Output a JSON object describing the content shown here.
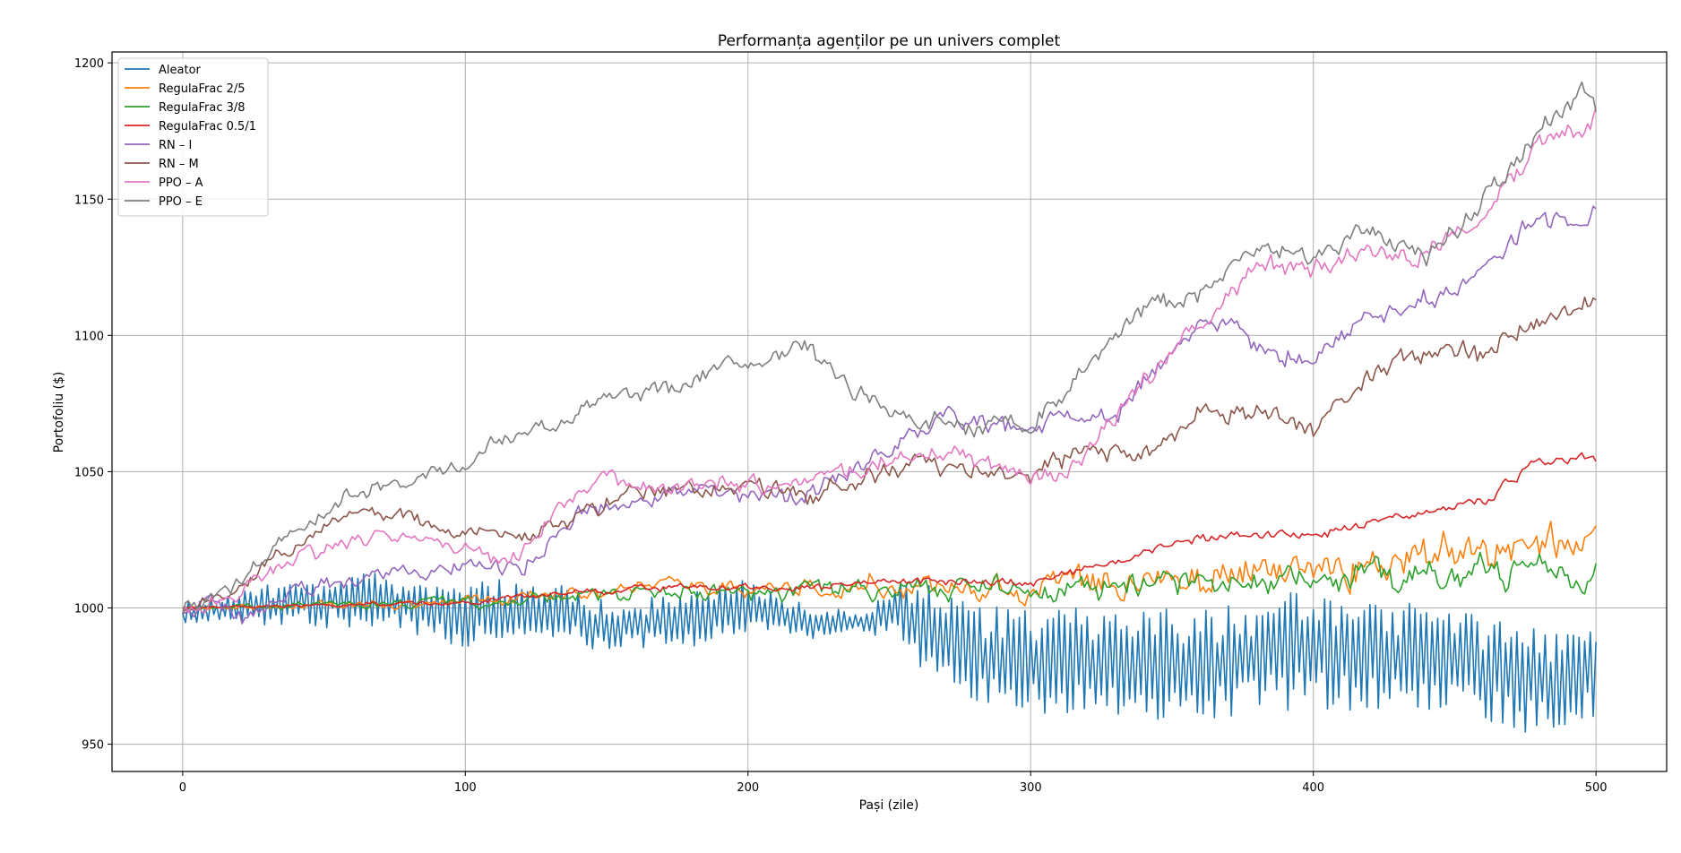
{
  "chart_data": {
    "type": "line",
    "title": "Performanța agenților pe un univers complet",
    "xlabel": "Pași (zile)",
    "ylabel": "Portofoliu ($)",
    "xlim": [
      -25,
      525
    ],
    "ylim": [
      940,
      1204
    ],
    "xticks": [
      0,
      100,
      200,
      300,
      400,
      500
    ],
    "yticks": [
      950,
      1000,
      1050,
      1100,
      1150,
      1200
    ],
    "grid": true,
    "legend_position": "top-left",
    "series": [
      {
        "name": "Aleator",
        "color": "#1f77b4",
        "mode": "oscillating",
        "amplitude_points": [
          [
            0,
            4
          ],
          [
            20,
            6
          ],
          [
            60,
            10
          ],
          [
            100,
            12
          ],
          [
            140,
            10
          ],
          [
            200,
            10
          ],
          [
            240,
            3
          ],
          [
            265,
            18
          ],
          [
            300,
            20
          ],
          [
            400,
            22
          ],
          [
            500,
            18
          ]
        ],
        "x": [
          0,
          20,
          40,
          60,
          80,
          100,
          130,
          150,
          170,
          200,
          220,
          240,
          255,
          265,
          290,
          320,
          350,
          380,
          400,
          430,
          460,
          480,
          495,
          500
        ],
        "y": [
          998,
          1000,
          1002,
          1003,
          1001,
          998,
          1000,
          993,
          995,
          1000,
          995,
          995,
          998,
          990,
          980,
          980,
          978,
          982,
          985,
          983,
          978,
          973,
          975,
          975
        ]
      },
      {
        "name": "RegulaFrac 2/5",
        "color": "#ff7f0e",
        "mode": "noisy",
        "noise_points": [
          [
            0,
            0.5
          ],
          [
            100,
            1.5
          ],
          [
            200,
            2.5
          ],
          [
            320,
            4
          ],
          [
            400,
            5
          ],
          [
            500,
            6
          ]
        ],
        "x": [
          0,
          50,
          100,
          130,
          160,
          200,
          230,
          260,
          290,
          300,
          320,
          340,
          360,
          380,
          400,
          420,
          440,
          460,
          480,
          500
        ],
        "y": [
          1000,
          1001,
          1002,
          1005,
          1007,
          1007,
          1008,
          1009,
          1008,
          1006,
          1010,
          1012,
          1011,
          1014,
          1012,
          1016,
          1017,
          1020,
          1024,
          1022
        ]
      },
      {
        "name": "RegulaFrac 3/8",
        "color": "#2ca02c",
        "mode": "noisy",
        "noise_points": [
          [
            0,
            0.5
          ],
          [
            100,
            1.5
          ],
          [
            200,
            2.5
          ],
          [
            320,
            3.5
          ],
          [
            400,
            4
          ],
          [
            500,
            4.5
          ]
        ],
        "x": [
          0,
          50,
          100,
          130,
          160,
          200,
          230,
          260,
          290,
          300,
          320,
          340,
          360,
          380,
          400,
          420,
          440,
          460,
          480,
          500
        ],
        "y": [
          1000,
          1001,
          1002,
          1004,
          1006,
          1005,
          1007,
          1008,
          1007,
          1005,
          1008,
          1009,
          1008,
          1010,
          1009,
          1011,
          1012,
          1012,
          1014,
          1012
        ]
      },
      {
        "name": "RegulaFrac 0.5/1",
        "color": "#d62728",
        "mode": "noisy",
        "noise_points": [
          [
            0,
            0.3
          ],
          [
            200,
            1
          ],
          [
            500,
            1.5
          ]
        ],
        "x": [
          0,
          50,
          100,
          130,
          160,
          200,
          230,
          260,
          290,
          300,
          320,
          340,
          360,
          380,
          400,
          420,
          440,
          460,
          480,
          500
        ],
        "y": [
          1000,
          1001,
          1002,
          1005,
          1007,
          1008,
          1008,
          1010,
          1009,
          1008,
          1015,
          1020,
          1025,
          1028,
          1026,
          1032,
          1035,
          1040,
          1054,
          1054
        ]
      },
      {
        "name": "RN – I",
        "color": "#9467bd",
        "mode": "noisy",
        "noise_points": [
          [
            0,
            2
          ],
          [
            500,
            3
          ]
        ],
        "x": [
          0,
          10,
          22,
          40,
          60,
          80,
          100,
          120,
          140,
          160,
          180,
          200,
          220,
          250,
          270,
          290,
          310,
          330,
          350,
          365,
          380,
          400,
          420,
          440,
          460,
          480,
          495,
          500
        ],
        "y": [
          998,
          1003,
          995,
          1008,
          1010,
          1012,
          1015,
          1015,
          1035,
          1040,
          1043,
          1040,
          1040,
          1058,
          1070,
          1065,
          1068,
          1070,
          1095,
          1106,
          1096,
          1093,
          1105,
          1115,
          1122,
          1145,
          1138,
          1145
        ]
      },
      {
        "name": "RN – M",
        "color": "#8c564b",
        "mode": "noisy",
        "noise_points": [
          [
            0,
            2
          ],
          [
            500,
            3
          ]
        ],
        "x": [
          0,
          20,
          40,
          60,
          80,
          100,
          120,
          140,
          160,
          180,
          200,
          220,
          240,
          260,
          280,
          300,
          320,
          340,
          360,
          380,
          400,
          420,
          440,
          460,
          480,
          500
        ],
        "y": [
          998,
          1008,
          1023,
          1035,
          1032,
          1028,
          1025,
          1035,
          1043,
          1043,
          1046,
          1040,
          1048,
          1052,
          1052,
          1050,
          1058,
          1055,
          1070,
          1072,
          1065,
          1085,
          1094,
          1092,
          1108,
          1112
        ]
      },
      {
        "name": "PPO – A",
        "color": "#e377c2",
        "mode": "noisy",
        "noise_points": [
          [
            0,
            2
          ],
          [
            500,
            3
          ]
        ],
        "x": [
          0,
          20,
          40,
          60,
          80,
          100,
          115,
          130,
          150,
          170,
          190,
          210,
          240,
          260,
          280,
          300,
          310,
          330,
          360,
          380,
          400,
          420,
          440,
          460,
          480,
          500
        ],
        "y": [
          998,
          1005,
          1018,
          1025,
          1025,
          1022,
          1015,
          1032,
          1048,
          1042,
          1045,
          1045,
          1052,
          1058,
          1055,
          1045,
          1048,
          1070,
          1105,
          1125,
          1125,
          1130,
          1130,
          1148,
          1170,
          1180
        ]
      },
      {
        "name": "PPO – E",
        "color": "#7f7f7f",
        "mode": "noisy",
        "noise_points": [
          [
            0,
            2
          ],
          [
            500,
            3
          ]
        ],
        "x": [
          0,
          20,
          40,
          60,
          80,
          100,
          110,
          130,
          150,
          170,
          190,
          200,
          220,
          240,
          260,
          280,
          300,
          320,
          340,
          360,
          380,
          400,
          420,
          440,
          460,
          480,
          495,
          500
        ],
        "y": [
          998,
          1010,
          1030,
          1042,
          1048,
          1050,
          1062,
          1065,
          1078,
          1080,
          1088,
          1088,
          1095,
          1078,
          1070,
          1065,
          1068,
          1088,
          1110,
          1115,
          1132,
          1128,
          1138,
          1128,
          1150,
          1175,
          1188,
          1182
        ]
      }
    ]
  }
}
